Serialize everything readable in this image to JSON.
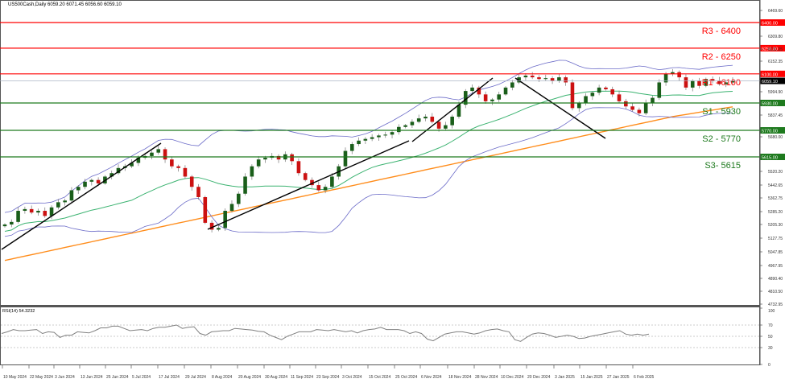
{
  "header": {
    "symbol_line": "US500Cash,Daily  6059.20 6071.45 6056.60 6059.10"
  },
  "rsi_panel": {
    "label": "RSI(14) 54.3232",
    "levels": [
      70,
      50,
      30
    ],
    "axis_ticks": [
      "100",
      "70",
      "50",
      "30",
      "0"
    ]
  },
  "colors": {
    "resistance": "#ff0000",
    "support": "#1e7a1e",
    "bull_candle": "#1a5e1a",
    "bear_candle": "#cc1111",
    "bollinger": "#6b6bc8",
    "ma_fast": "#3cb371",
    "ma_slow": "#ff8c1a",
    "trendline": "#000000",
    "rsi_line": "#808080",
    "current_price_bg": "#000000"
  },
  "chart_data": {
    "type": "candlestick",
    "title": "US500Cash, Daily",
    "ohlc_last": {
      "open": 6059.2,
      "high": 6071.45,
      "low": 6056.6,
      "close": 6059.1
    },
    "current_price": 6059.1,
    "y_ticks": [
      "6469.60",
      "6309.80",
      "6231.25",
      "6152.35",
      "5994.90",
      "5837.45",
      "5680.00",
      "5520.20",
      "5442.65",
      "5362.75",
      "5285.20",
      "5205.30",
      "5127.75",
      "5047.85",
      "4967.95",
      "4890.40",
      "4810.50",
      "4732.95"
    ],
    "ylim": [
      4732.95,
      6520
    ],
    "x_ticks": [
      "10 May 2024",
      "22 May 2024",
      "3 Jun 2024",
      "13 Jun 2024",
      "25 Jun 2024",
      "5 Jul 2024",
      "17 Jul 2024",
      "29 Jul 2024",
      "8 Aug 2024",
      "20 Aug 2024",
      "30 Aug 2024",
      "11 Sep 2024",
      "23 Sep 2024",
      "3 Oct 2024",
      "15 Oct 2024",
      "25 Oct 2024",
      "6 Nov 2024",
      "18 Nov 2024",
      "28 Nov 2024",
      "10 Dec 2024",
      "20 Dec 2024",
      "3 Jan 2025",
      "15 Jan 2025",
      "27 Jan 2025",
      "6 Feb 2025"
    ],
    "levels": [
      {
        "name": "R3",
        "label": "R3 - 6400",
        "value": 6400,
        "axis_label": "6400.00",
        "type": "resistance"
      },
      {
        "name": "R2",
        "label": "R2 - 6250",
        "value": 6250,
        "axis_label": "6250.00",
        "type": "resistance"
      },
      {
        "name": "R1",
        "label": "R1 - 6100",
        "value": 6100,
        "axis_label": "6100.00",
        "type": "resistance"
      },
      {
        "name": "S1",
        "label": "S1 - 5930",
        "value": 5930,
        "axis_label": "5930.00",
        "type": "support"
      },
      {
        "name": "S2",
        "label": "S2 - 5770",
        "value": 5770,
        "axis_label": "5770.00",
        "type": "support"
      },
      {
        "name": "S3",
        "label": "S3- 5615",
        "value": 5615,
        "axis_label": "5615.00",
        "type": "support"
      }
    ],
    "series": [
      {
        "name": "Close (approx)",
        "values": [
          5220,
          5235,
          5300,
          5310,
          5290,
          5300,
          5270,
          5320,
          5350,
          5360,
          5420,
          5440,
          5470,
          5480,
          5460,
          5500,
          5520,
          5550,
          5560,
          5580,
          5610,
          5620,
          5640,
          5660,
          5600,
          5560,
          5550,
          5500,
          5440,
          5380,
          5230,
          5190,
          5200,
          5300,
          5340,
          5400,
          5500,
          5560,
          5600,
          5610,
          5620,
          5600,
          5630,
          5590,
          5520,
          5480,
          5450,
          5420,
          5440,
          5500,
          5560,
          5650,
          5690,
          5710,
          5720,
          5730,
          5740,
          5745,
          5760,
          5790,
          5800,
          5820,
          5840,
          5850,
          5820,
          5780,
          5800,
          5850,
          5920,
          6000,
          6020,
          5980,
          5940,
          5950,
          5980,
          6020,
          6050,
          6080,
          6090,
          6080,
          6070,
          6075,
          6060,
          6080,
          6050,
          5900,
          5930,
          5970,
          5990,
          6020,
          6010,
          5980,
          5940,
          5910,
          5890,
          5870,
          5930,
          5960,
          6050,
          6100,
          6110,
          6080,
          6020,
          6060,
          6030,
          6070,
          6060,
          6040,
          6050,
          6059
        ]
      },
      {
        "name": "RSI(14)",
        "values": [
          55,
          58,
          62,
          60,
          60,
          61,
          62,
          55,
          58,
          57,
          48,
          52,
          52,
          58,
          57,
          56,
          60,
          65,
          65,
          68,
          68,
          64,
          60,
          61,
          62,
          60,
          64,
          66,
          66,
          68,
          70,
          64,
          66,
          67,
          55,
          52,
          58,
          59,
          60,
          60,
          64,
          63,
          62,
          61,
          59,
          58,
          52,
          48,
          44,
          50,
          54,
          58,
          58,
          58,
          62,
          61,
          60,
          62,
          60,
          58,
          60,
          56,
          60,
          62,
          63,
          66,
          62,
          62,
          62,
          60,
          55,
          58,
          55,
          45,
          42,
          48,
          54,
          56,
          58,
          58,
          56,
          54,
          56,
          60,
          62,
          63,
          60,
          58,
          44,
          41,
          48,
          54,
          56,
          55,
          52,
          48,
          50,
          52,
          50,
          46,
          47,
          50,
          52,
          54,
          56,
          58,
          60,
          54,
          52,
          54,
          52,
          54
        ]
      },
      {
        "name": "Bollinger Bands (20)",
        "values": []
      },
      {
        "name": "MA 50",
        "values": []
      },
      {
        "name": "MA 100",
        "values": []
      }
    ],
    "trendlines": [
      {
        "from": "10 May 2024",
        "to": "9 Jul 2024",
        "direction": "up"
      },
      {
        "from": "5 Aug 2024",
        "to": "30 Oct 2024",
        "direction": "up"
      },
      {
        "from": "1 Nov 2024",
        "to": "6 Dec 2024",
        "direction": "up"
      },
      {
        "from": "16 Dec 2024",
        "to": "10 Jan 2025",
        "direction": "down"
      }
    ],
    "grid": false,
    "legend": "none"
  }
}
